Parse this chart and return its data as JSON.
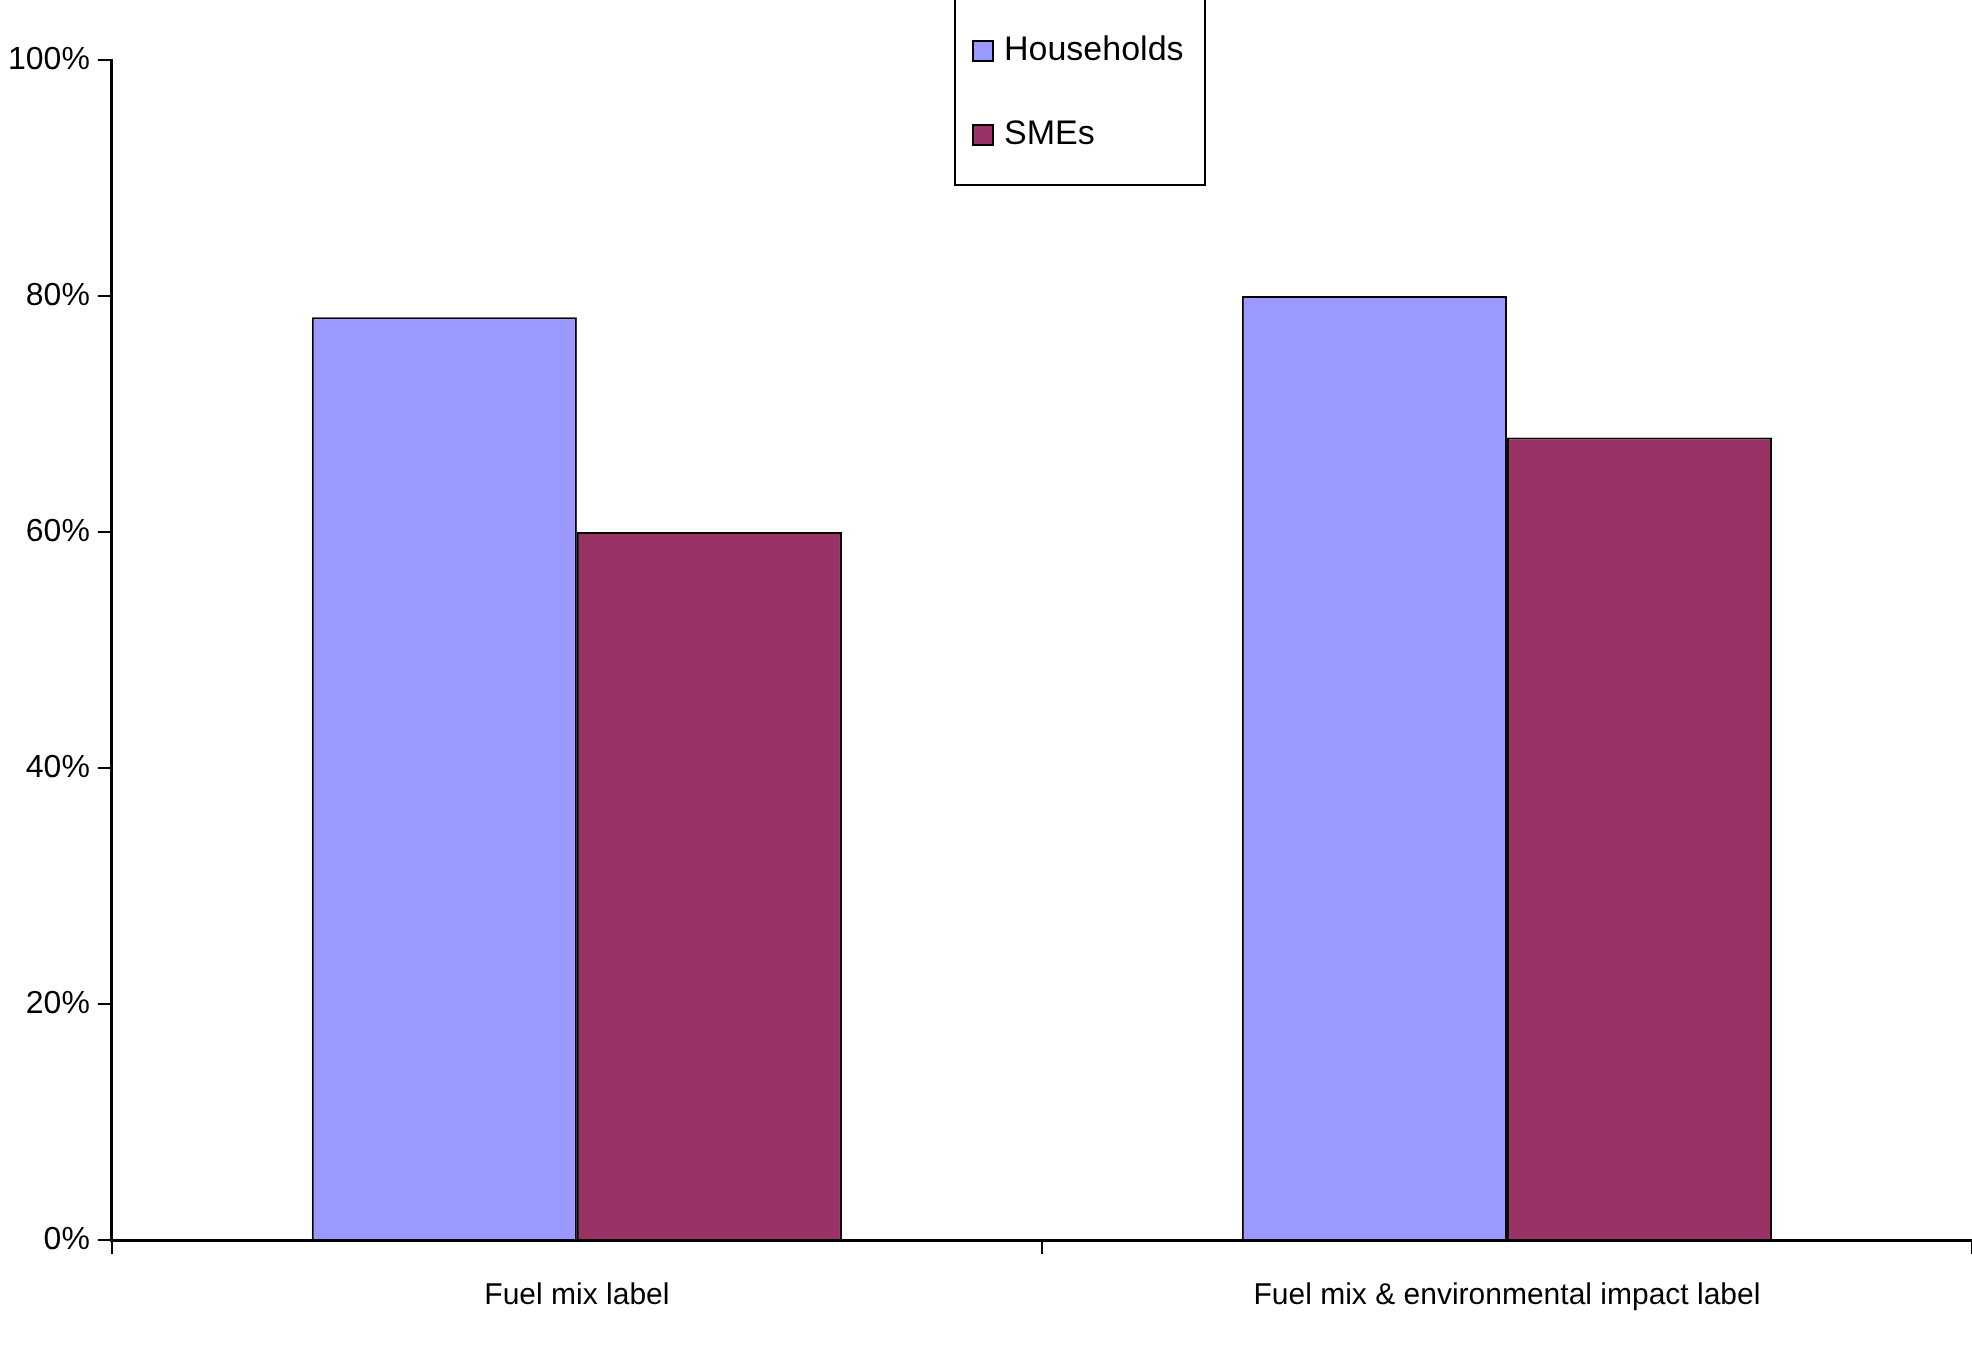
{
  "chart_data": {
    "type": "bar",
    "categories": [
      "Fuel mix label",
      "Fuel mix & environmental impact label"
    ],
    "series": [
      {
        "name": "Households",
        "color": "#9999ff",
        "values": [
          78.2,
          80
        ]
      },
      {
        "name": "SMEs",
        "color": "#993366",
        "values": [
          60,
          68
        ]
      }
    ],
    "ylim": [
      0,
      100
    ],
    "yticks": [
      {
        "value": 0,
        "label": "0%"
      },
      {
        "value": 20,
        "label": "20%"
      },
      {
        "value": 40,
        "label": "40%"
      },
      {
        "value": 60,
        "label": "60%"
      },
      {
        "value": 80,
        "label": "80%"
      },
      {
        "value": 100,
        "label": "100%"
      }
    ],
    "grid": false,
    "legend": "top"
  }
}
